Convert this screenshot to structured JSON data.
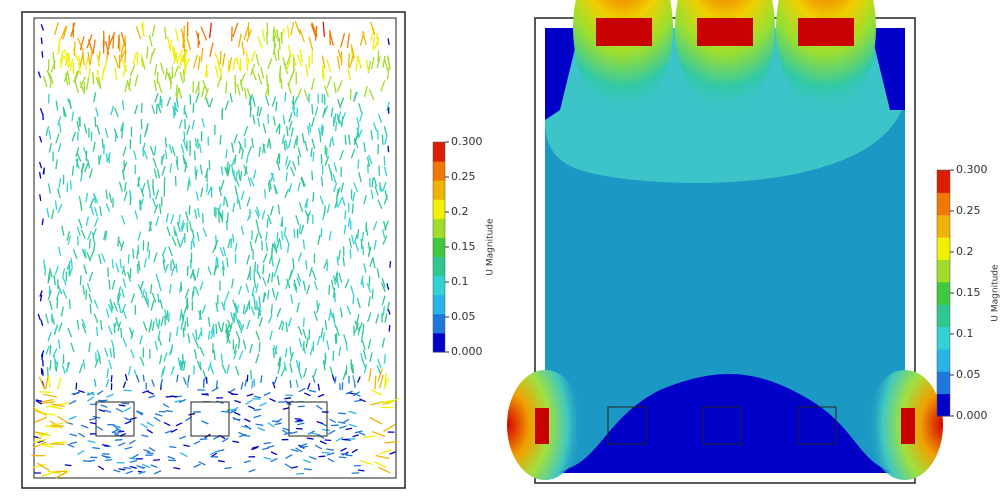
{
  "panels": [
    {
      "colorbar": {
        "title": "U Magnitude",
        "range": [
          0,
          0.3
        ],
        "ticks": [
          {
            "value": 0,
            "label": "0.000"
          },
          0.05,
          0.1,
          0.15,
          0.2,
          0.25,
          {
            "value": 0.3,
            "label": "0.300"
          }
        ]
      }
    },
    {
      "colorbar": {
        "title": "U Magnitude",
        "range": [
          0,
          0.3
        ],
        "ticks": [
          {
            "value": 0,
            "label": "0.000"
          },
          0.05,
          0.1,
          0.15,
          0.2,
          0.25,
          {
            "value": 0.3,
            "label": "0.300"
          }
        ]
      }
    }
  ]
}
